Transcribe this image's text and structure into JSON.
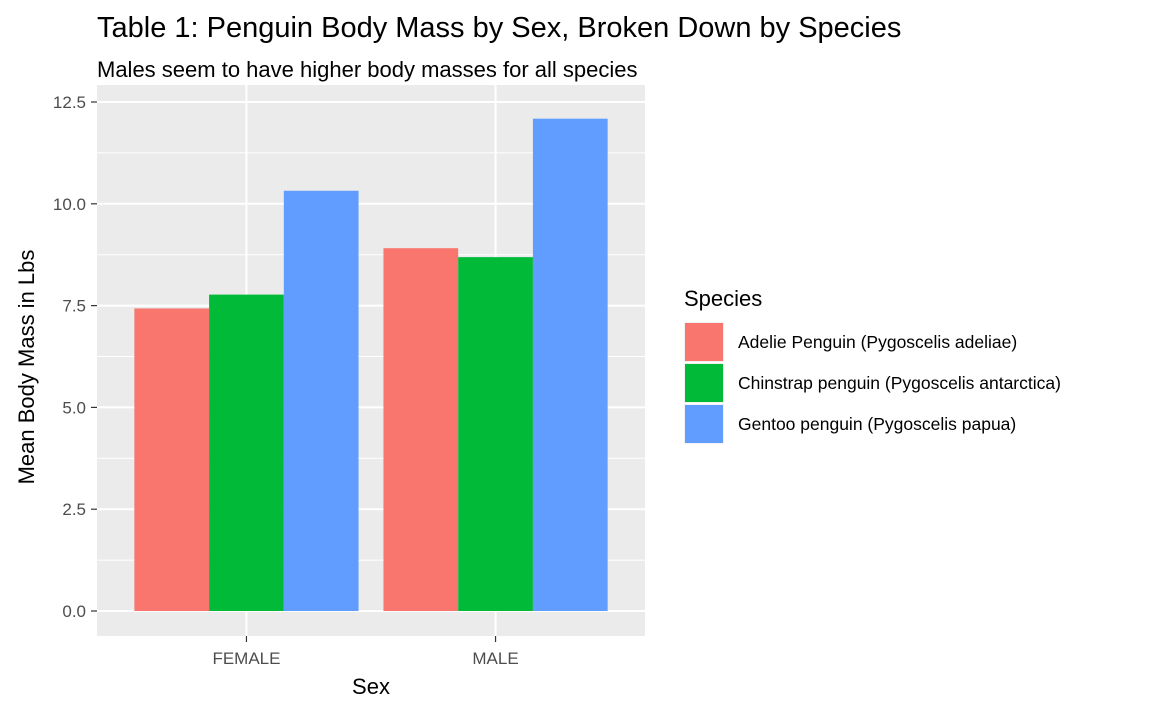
{
  "chart_data": {
    "type": "bar",
    "title": "Table 1: Penguin Body Mass by Sex, Broken Down by Species",
    "subtitle": "Males seem to have higher body masses for all species",
    "xlabel": "Sex",
    "ylabel": "Mean Body Mass in Lbs",
    "categories": [
      "FEMALE",
      "MALE"
    ],
    "ylim": [
      0,
      12.5
    ],
    "yticks": [
      0,
      2.5,
      5,
      7.5,
      10,
      12.5
    ],
    "ytick_labels": [
      "0.0",
      "2.5",
      "5.0",
      "7.5",
      "10.0",
      "12.5"
    ],
    "grid": true,
    "legend": {
      "title": "Species",
      "position": "right"
    },
    "series": [
      {
        "name": "Adelie Penguin (Pygoscelis adeliae)",
        "values": [
          7.43,
          8.91
        ],
        "color": "#F8766D"
      },
      {
        "name": "Chinstrap penguin (Pygoscelis antarctica)",
        "values": [
          7.77,
          8.69
        ],
        "color": "#00BA38"
      },
      {
        "name": "Gentoo penguin (Pygoscelis papua)",
        "values": [
          10.32,
          12.09
        ],
        "color": "#619CFF"
      }
    ]
  }
}
